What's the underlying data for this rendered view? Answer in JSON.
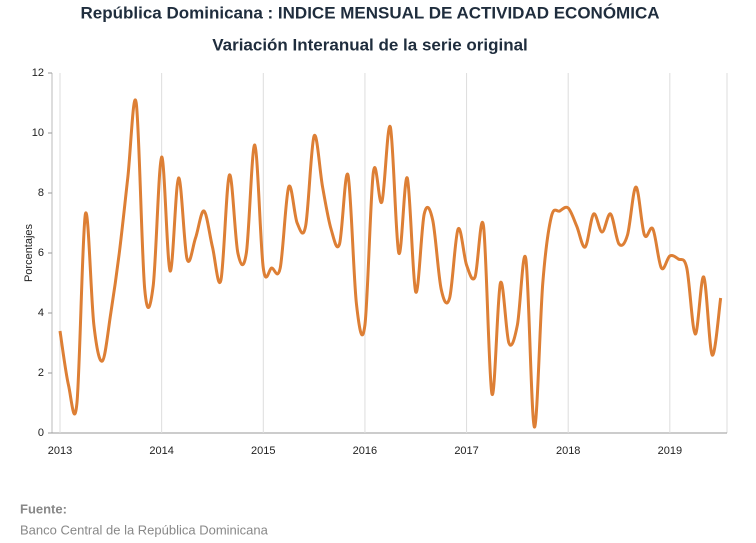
{
  "chart_data": {
    "type": "line",
    "title": "República Dominicana : INDICE MENSUAL DE ACTIVIDAD ECONÓMICA",
    "subtitle": "Variación Interanual de la serie original",
    "y_label": "Porcentajes",
    "source_label": "Fuente:",
    "source": "Banco Central de la República Dominicana",
    "categories": [
      "2013",
      null,
      null,
      null,
      null,
      null,
      null,
      null,
      null,
      null,
      null,
      null,
      "2014",
      null,
      null,
      null,
      null,
      null,
      null,
      null,
      null,
      null,
      null,
      null,
      "2015",
      null,
      null,
      null,
      null,
      null,
      null,
      null,
      null,
      null,
      null,
      null,
      "2016",
      null,
      null,
      null,
      null,
      null,
      null,
      null,
      null,
      null,
      null,
      null,
      "2017",
      null,
      null,
      null,
      null,
      null,
      null,
      null,
      null,
      null,
      null,
      null,
      "2018",
      null,
      null,
      null,
      null,
      null,
      null,
      null,
      null,
      null,
      null,
      null,
      "2019",
      null,
      null,
      null,
      null,
      null,
      null
    ],
    "series": [
      {
        "color": "#dd7f35",
        "values": [
          3.4,
          1.6,
          1.0,
          7.3,
          3.6,
          2.4,
          4.0,
          6.0,
          8.5,
          11.0,
          4.8,
          4.9,
          9.2,
          5.4,
          8.5,
          5.8,
          6.5,
          7.4,
          6.2,
          5.1,
          8.6,
          6.0,
          6.0,
          9.6,
          5.5,
          5.5,
          5.5,
          8.2,
          7.0,
          6.9,
          9.9,
          8.2,
          6.8,
          6.3,
          8.6,
          4.3,
          3.6,
          8.7,
          7.7,
          10.2,
          6.0,
          8.5,
          4.7,
          7.3,
          7.1,
          4.8,
          4.5,
          6.8,
          5.6,
          5.2,
          6.9,
          1.3,
          5.0,
          3.0,
          3.6,
          5.8,
          0.2,
          5.0,
          7.2,
          7.4,
          7.5,
          6.9,
          6.2,
          7.3,
          6.7,
          7.3,
          6.3,
          6.6,
          8.2,
          6.6,
          6.8,
          5.5,
          5.9,
          5.8,
          5.5,
          3.3,
          5.2,
          2.6,
          4.5
        ]
      }
    ],
    "ylim": [
      0,
      12
    ],
    "yticks": [
      0,
      2,
      4,
      6,
      8,
      10,
      12
    ],
    "grid": true
  }
}
